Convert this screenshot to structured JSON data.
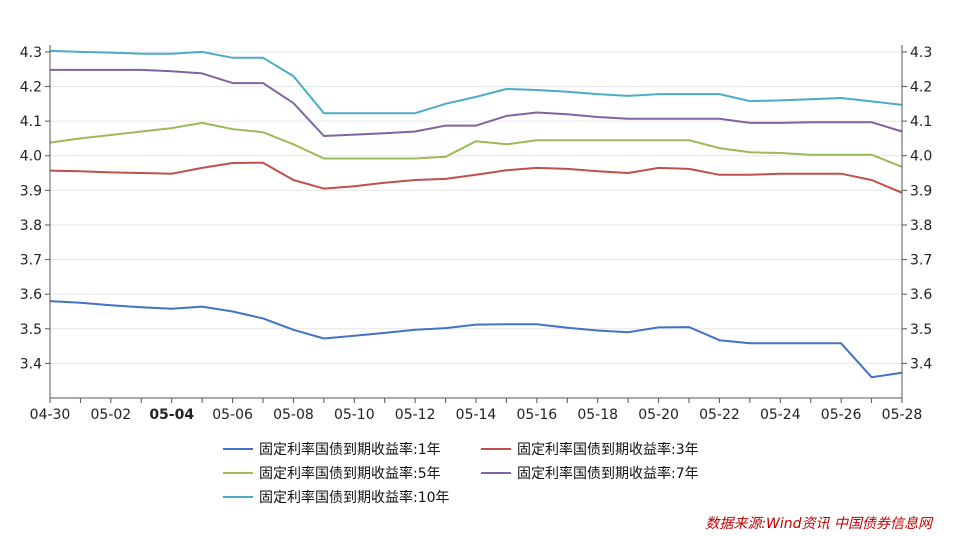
{
  "chart_data": {
    "type": "line",
    "x": [
      "04-30",
      "05-01",
      "05-02",
      "05-03",
      "05-04",
      "05-05",
      "05-06",
      "05-07",
      "05-08",
      "05-09",
      "05-10",
      "05-11",
      "05-12",
      "05-13",
      "05-14",
      "05-15",
      "05-16",
      "05-17",
      "05-18",
      "05-19",
      "05-20",
      "05-21",
      "05-22",
      "05-23",
      "05-24",
      "05-25",
      "05-26",
      "05-27",
      "05-28"
    ],
    "x_tick_labels": [
      "04-30",
      "05-02",
      "05-04",
      "05-06",
      "05-08",
      "05-10",
      "05-12",
      "05-14",
      "05-16",
      "05-18",
      "05-20",
      "05-22",
      "05-24",
      "05-26",
      "05-28"
    ],
    "bold_tick_label": "05-04",
    "ylim": [
      3.3,
      4.32
    ],
    "y_ticks": [
      "3.4",
      "3.5",
      "3.6",
      "3.7",
      "3.8",
      "3.9",
      "4.0",
      "4.1",
      "4.2",
      "4.3"
    ],
    "grid": "horizontal",
    "legend_position": "bottom",
    "series": [
      {
        "name": "固定利率国债到期收益率:1年",
        "color": "#4472c4",
        "values": [
          3.58,
          3.575,
          3.568,
          3.562,
          3.558,
          3.564,
          3.55,
          3.53,
          3.497,
          3.472,
          3.48,
          3.488,
          3.497,
          3.502,
          3.512,
          3.513,
          3.513,
          3.503,
          3.495,
          3.49,
          3.504,
          3.505,
          3.467,
          3.458,
          3.458,
          3.458,
          3.458,
          3.36,
          3.373
        ]
      },
      {
        "name": "固定利率国债到期收益率:3年",
        "color": "#c0504d",
        "values": [
          3.957,
          3.955,
          3.952,
          3.95,
          3.948,
          3.965,
          3.979,
          3.98,
          3.93,
          3.905,
          3.912,
          3.922,
          3.93,
          3.933,
          3.945,
          3.958,
          3.965,
          3.962,
          3.955,
          3.95,
          3.965,
          3.962,
          3.945,
          3.945,
          3.948,
          3.948,
          3.948,
          3.93,
          3.893
        ]
      },
      {
        "name": "固定利率国债到期收益率:5年",
        "color": "#9bbb59",
        "values": [
          4.038,
          4.05,
          4.06,
          4.07,
          4.08,
          4.095,
          4.077,
          4.068,
          4.033,
          3.992,
          3.992,
          3.992,
          3.992,
          3.997,
          4.042,
          4.033,
          4.045,
          4.045,
          4.045,
          4.045,
          4.045,
          4.045,
          4.022,
          4.01,
          4.008,
          4.003,
          4.003,
          4.003,
          3.968
        ]
      },
      {
        "name": "固定利率国债到期收益率:7年",
        "color": "#8064a2",
        "values": [
          4.248,
          4.248,
          4.248,
          4.248,
          4.244,
          4.238,
          4.21,
          4.21,
          4.152,
          4.057,
          4.061,
          4.065,
          4.07,
          4.087,
          4.087,
          4.115,
          4.125,
          4.12,
          4.112,
          4.107,
          4.107,
          4.107,
          4.107,
          4.095,
          4.095,
          4.097,
          4.097,
          4.097,
          4.07
        ]
      },
      {
        "name": "固定利率国债到期收益率:10年",
        "color": "#4bacc6",
        "values": [
          4.303,
          4.3,
          4.298,
          4.295,
          4.295,
          4.3,
          4.283,
          4.283,
          4.23,
          4.123,
          4.123,
          4.123,
          4.123,
          4.15,
          4.17,
          4.193,
          4.19,
          4.185,
          4.178,
          4.173,
          4.178,
          4.178,
          4.178,
          4.158,
          4.16,
          4.163,
          4.167,
          4.157,
          4.147
        ]
      }
    ],
    "source": "数据来源:Wind资讯  中国债券信息网"
  }
}
